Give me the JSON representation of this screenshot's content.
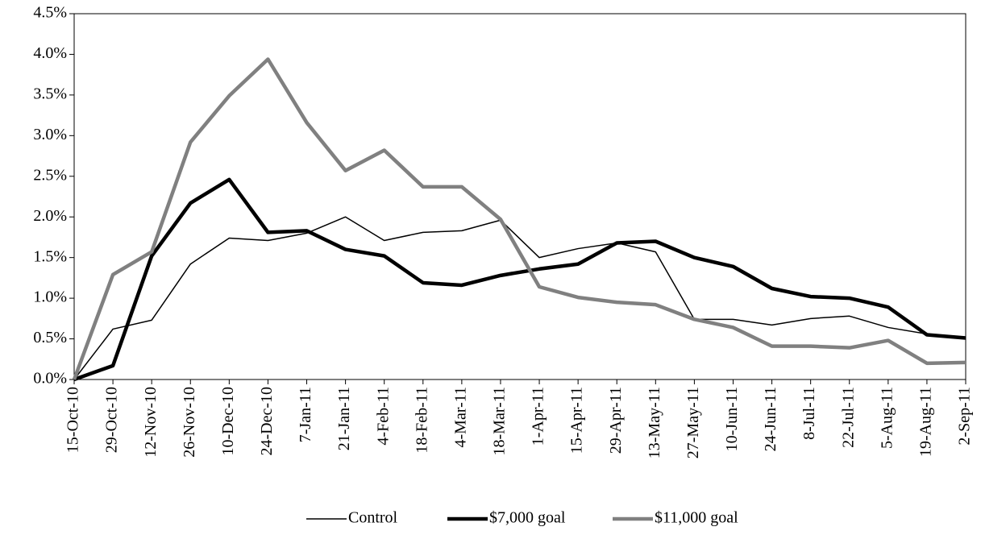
{
  "chart_data": {
    "type": "line",
    "categories": [
      "15-Oct-10",
      "29-Oct-10",
      "12-Nov-10",
      "26-Nov-10",
      "10-Dec-10",
      "24-Dec-10",
      "7-Jan-11",
      "21-Jan-11",
      "4-Feb-11",
      "18-Feb-11",
      "4-Mar-11",
      "18-Mar-11",
      "1-Apr-11",
      "15-Apr-11",
      "29-Apr-11",
      "13-May-11",
      "27-May-11",
      "10-Jun-11",
      "24-Jun-11",
      "8-Jul-11",
      "22-Jul-11",
      "5-Aug-11",
      "19-Aug-11",
      "2-Sep-11"
    ],
    "series": [
      {
        "name": "Control",
        "color": "#000000",
        "values": [
          0,
          0.62,
          0.73,
          1.42,
          1.74,
          1.71,
          1.8,
          2.0,
          1.71,
          1.81,
          1.83,
          1.96,
          1.5,
          1.61,
          1.68,
          1.57,
          0.74,
          0.74,
          0.67,
          0.75,
          0.78,
          0.64,
          0.56,
          0.51
        ]
      },
      {
        "name": "$7,000 goal",
        "color": "#000000",
        "values": [
          0,
          0.17,
          1.52,
          2.17,
          2.46,
          1.81,
          1.83,
          1.6,
          1.52,
          1.19,
          1.16,
          1.28,
          1.36,
          1.42,
          1.68,
          1.7,
          1.5,
          1.39,
          1.12,
          1.02,
          1.0,
          0.89,
          0.55,
          0.51
        ]
      },
      {
        "name": "$11,000 goal",
        "color": "#808080",
        "values": [
          0,
          1.29,
          1.57,
          2.92,
          3.49,
          3.94,
          3.16,
          2.57,
          2.82,
          2.37,
          2.37,
          1.97,
          1.14,
          1.01,
          0.95,
          0.92,
          0.74,
          0.64,
          0.41,
          0.41,
          0.39,
          0.48,
          0.2,
          0.21
        ]
      }
    ],
    "ylim": [
      0,
      4.5
    ],
    "yticks": [
      {
        "value": 0,
        "label": "0.0%"
      },
      {
        "value": 0.5,
        "label": "0.5%"
      },
      {
        "value": 1,
        "label": "1.0%"
      },
      {
        "value": 1.5,
        "label": "1.5%"
      },
      {
        "value": 2,
        "label": "2.0%"
      },
      {
        "value": 2.5,
        "label": "2.5%"
      },
      {
        "value": 3,
        "label": "3.0%"
      },
      {
        "value": 3.5,
        "label": "3.5%"
      },
      {
        "value": 4,
        "label": "4.0%"
      },
      {
        "value": 4.5,
        "label": "4.5%"
      }
    ],
    "grid": false,
    "legend": "bottom"
  }
}
